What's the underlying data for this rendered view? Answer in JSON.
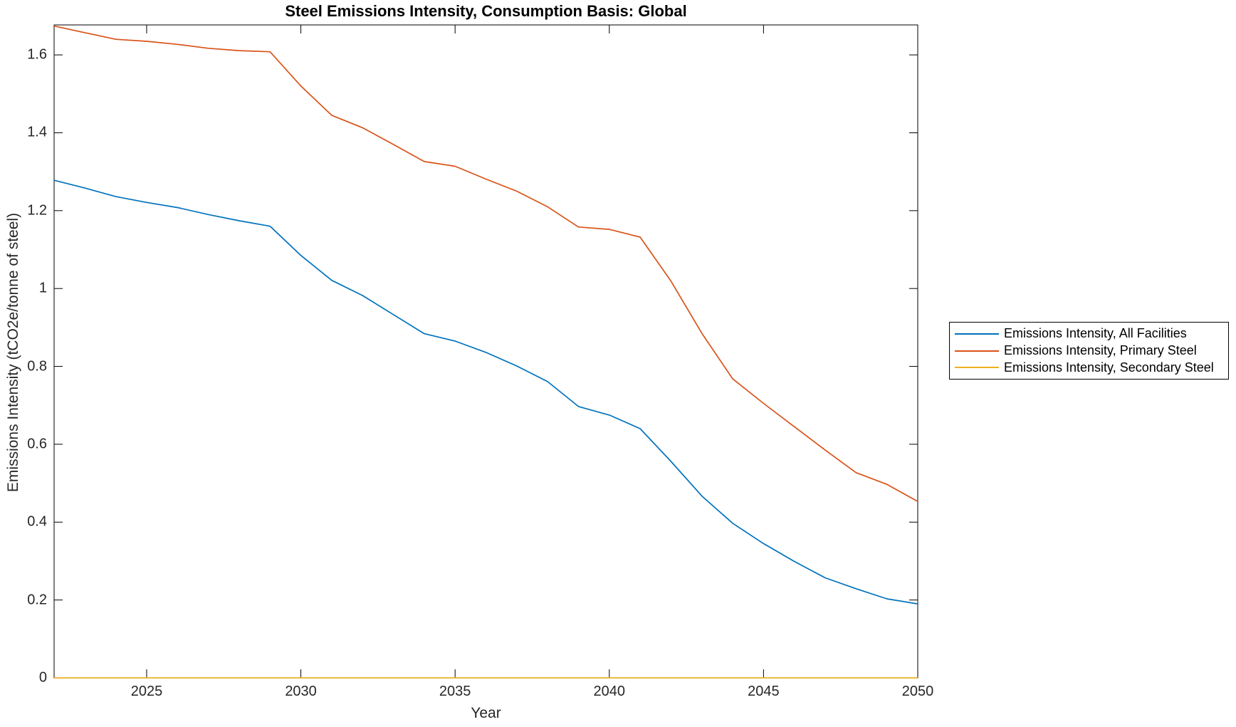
{
  "chart_data": {
    "type": "line",
    "title": "Steel Emissions Intensity, Consumption Basis: Global",
    "xlabel": "Year",
    "ylabel": "Emissions Intensity (tCO2e/tonne of steel)",
    "xlim": [
      2022,
      2050
    ],
    "ylim": [
      0,
      1.677
    ],
    "grid": false,
    "legend_position": "outside-right",
    "axis_color": "#000000",
    "x": [
      2022,
      2023,
      2024,
      2025,
      2026,
      2027,
      2028,
      2029,
      2030,
      2031,
      2032,
      2033,
      2034,
      2035,
      2036,
      2037,
      2038,
      2039,
      2040,
      2041,
      2042,
      2043,
      2044,
      2045,
      2046,
      2047,
      2048,
      2049,
      2050
    ],
    "series": [
      {
        "name": "Emissions Intensity, All Facilities",
        "color": "#0072BD",
        "values": [
          1.278,
          1.258,
          1.236,
          1.221,
          1.208,
          1.19,
          1.174,
          1.16,
          1.085,
          1.021,
          0.982,
          0.933,
          0.884,
          0.865,
          0.836,
          0.801,
          0.761,
          0.697,
          0.675,
          0.64,
          0.556,
          0.467,
          0.397,
          0.345,
          0.299,
          0.257,
          0.229,
          0.203,
          0.19
        ]
      },
      {
        "name": "Emissions Intensity, Primary Steel",
        "color": "#D95319",
        "values": [
          1.674,
          1.657,
          1.64,
          1.635,
          1.627,
          1.617,
          1.611,
          1.608,
          1.52,
          1.445,
          1.413,
          1.37,
          1.326,
          1.314,
          1.281,
          1.25,
          1.21,
          1.158,
          1.152,
          1.132,
          1.019,
          0.885,
          0.768,
          0.705,
          0.645,
          0.585,
          0.527,
          0.497,
          0.453
        ]
      },
      {
        "name": "Emissions Intensity, Secondary Steel",
        "color": "#EDB120",
        "values": [
          0,
          0,
          0,
          0,
          0,
          0,
          0,
          0,
          0,
          0,
          0,
          0,
          0,
          0,
          0,
          0,
          0,
          0,
          0,
          0,
          0,
          0,
          0,
          0,
          0,
          0,
          0,
          0,
          0
        ]
      }
    ],
    "xticks": [
      2025,
      2030,
      2035,
      2040,
      2045,
      2050
    ],
    "xtick_labels": [
      "2025",
      "2030",
      "2035",
      "2040",
      "2045",
      "2050"
    ],
    "yticks": [
      0,
      0.2,
      0.4,
      0.6,
      0.8,
      1,
      1.2,
      1.4,
      1.6
    ],
    "ytick_labels": [
      "0",
      "0.2",
      "0.4",
      "0.6",
      "0.8",
      "1",
      "1.2",
      "1.4",
      "1.6"
    ]
  }
}
